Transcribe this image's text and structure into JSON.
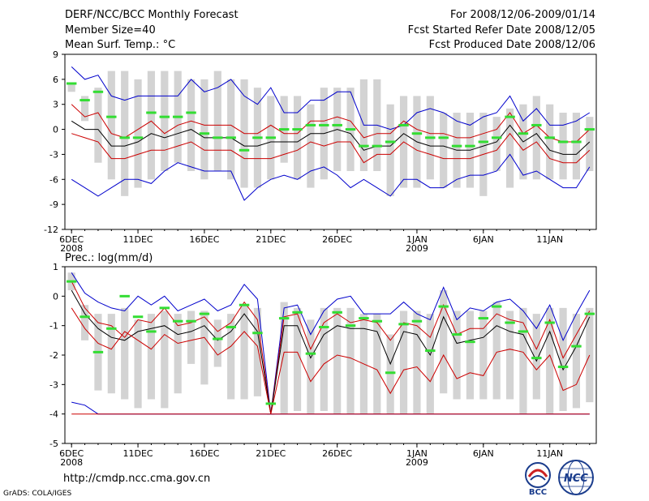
{
  "header": {
    "title": "DERF/NCC/BCC Monthly Forecast",
    "member_size": "Member Size=40",
    "variable": "Mean Surf. Temp.: °C",
    "period": "For 2008/12/06-2009/01/14",
    "started": "Fcst Started Refer Date 2008/12/05",
    "produced": "Fcst Produced Date 2008/12/06"
  },
  "footer": {
    "url": "http://cmdp.ncc.cma.gov.cn",
    "grads": "GrADS: COLA/IGES",
    "logo_bcc": "BCC",
    "logo_ncc": "NCC"
  },
  "colors": {
    "max_min": "#0000cc",
    "spread": "#cc0000",
    "mean": "#000000",
    "box": "#d3d3d3",
    "observed": "#33dd33"
  },
  "chart_data": [
    {
      "type": "line",
      "title": "Mean Surf. Temp.: °C",
      "ylim": [
        -12,
        9
      ],
      "yticks": [
        9,
        6,
        3,
        0,
        -3,
        -6,
        -9,
        -12
      ],
      "xlim": [
        0,
        40
      ],
      "xticks": [
        {
          "x": 0.5,
          "label": "6DEC",
          "sub": "2008"
        },
        {
          "x": 5.5,
          "label": "11DEC"
        },
        {
          "x": 10.5,
          "label": "16DEC"
        },
        {
          "x": 15.5,
          "label": "21DEC"
        },
        {
          "x": 20.5,
          "label": "26DEC"
        },
        {
          "x": 26.5,
          "label": "1JAN",
          "sub": "2009"
        },
        {
          "x": 31.5,
          "label": "6JAN"
        },
        {
          "x": 36.5,
          "label": "11JAN"
        }
      ],
      "box_top": [
        5.5,
        4,
        5,
        7,
        7,
        6,
        7,
        7,
        7,
        6,
        6,
        7,
        6,
        6,
        5,
        4,
        4,
        4,
        3,
        5,
        5,
        5,
        6,
        6,
        3,
        4,
        4,
        4,
        2,
        2,
        2,
        2,
        1.5,
        2.5,
        3,
        4,
        3,
        2,
        2,
        1.5
      ],
      "box_bottom": [
        4.5,
        1,
        -4,
        -6,
        -8,
        -7,
        -6,
        -5,
        -4,
        -5,
        -6,
        -5,
        -6,
        -7,
        -7,
        -6,
        -4,
        -6,
        -7,
        -6,
        -5,
        -5,
        -5,
        -5,
        -8,
        -7,
        -7,
        -6,
        -7,
        -7,
        -7,
        -8,
        -5,
        -7,
        -6,
        -6,
        -6,
        -6,
        -6,
        -5
      ],
      "observed": [
        5.5,
        3.5,
        4.5,
        1.5,
        -1,
        -1,
        2,
        1.5,
        1.5,
        2,
        -0.5,
        -1,
        -1,
        -2.5,
        -1,
        -1,
        0,
        0,
        0.5,
        0.5,
        0.5,
        0,
        -2,
        -2,
        -1.5,
        0.5,
        -0.5,
        -1,
        -1,
        -2,
        -2,
        -1.5,
        -1,
        1.5,
        -0.5,
        0.5,
        -1,
        -1.5,
        -1.5,
        0
      ],
      "series": [
        {
          "name": "max",
          "values": [
            7.5,
            6,
            6.5,
            4,
            3.5,
            4,
            4,
            4,
            4,
            6,
            4.5,
            5,
            6,
            4,
            3,
            5,
            2,
            2,
            3.5,
            3.5,
            4.5,
            4.5,
            0.5,
            0.5,
            0,
            0.5,
            2,
            2.5,
            2,
            1,
            0.5,
            1.5,
            2,
            4,
            1,
            2.5,
            0.5,
            0.5,
            1,
            2
          ]
        },
        {
          "name": "upper",
          "values": [
            3,
            1.5,
            2,
            -0.5,
            -1,
            0,
            1,
            -0.5,
            0.5,
            1,
            0.5,
            0.5,
            0.5,
            -0.5,
            -0.5,
            0.5,
            -0.5,
            -0.5,
            1,
            1,
            1.5,
            1,
            -1,
            -0.5,
            -0.5,
            1,
            0,
            -0.5,
            -0.5,
            -1,
            -1,
            -0.5,
            0,
            2,
            -0.5,
            0.5,
            -1,
            -1.5,
            -1.5,
            0
          ]
        },
        {
          "name": "mean",
          "values": [
            1,
            0,
            0,
            -2,
            -2,
            -1.5,
            -0.5,
            -1,
            -0.5,
            0,
            -1,
            -1,
            -1,
            -2,
            -2,
            -1.5,
            -1.5,
            -1.5,
            -0.5,
            -0.5,
            0,
            -0.5,
            -2.5,
            -2,
            -2,
            -0.5,
            -1.5,
            -2,
            -2,
            -2.5,
            -2.5,
            -2,
            -1.5,
            0.5,
            -1.5,
            -0.5,
            -2.5,
            -3,
            -3,
            -1.5
          ]
        },
        {
          "name": "lower",
          "values": [
            -0.5,
            -1,
            -1.5,
            -3.5,
            -3.5,
            -3,
            -2.5,
            -2.5,
            -2,
            -1.5,
            -2.5,
            -2.5,
            -2.5,
            -3.5,
            -3.5,
            -3.5,
            -3,
            -2.5,
            -1.5,
            -2,
            -1.5,
            -1.5,
            -4,
            -3,
            -3,
            -1.5,
            -2.5,
            -3,
            -3.5,
            -3.5,
            -3.5,
            -3,
            -2.5,
            -0.5,
            -2.5,
            -1.5,
            -3.5,
            -4,
            -4,
            -2.5
          ]
        },
        {
          "name": "min",
          "values": [
            -6,
            -7,
            -8,
            -7,
            -6,
            -6,
            -6.5,
            -5,
            -4,
            -4.5,
            -5,
            -5,
            -5,
            -8.5,
            -7,
            -6,
            -5.5,
            -6,
            -5,
            -4.5,
            -5.5,
            -7,
            -6,
            -7,
            -8,
            -6,
            -6,
            -7,
            -7,
            -6,
            -5.5,
            -5.5,
            -5,
            -3,
            -5.5,
            -5,
            -6,
            -7,
            -7,
            -4.5
          ]
        }
      ]
    },
    {
      "type": "line",
      "title": "Prec.: log(mm/d)",
      "ylim": [
        -5,
        1
      ],
      "yticks": [
        1,
        0,
        -1,
        -2,
        -3,
        -4,
        -5
      ],
      "xlim": [
        0,
        40
      ],
      "xticks": [
        {
          "x": 0.5,
          "label": "6DEC",
          "sub": "2008"
        },
        {
          "x": 5.5,
          "label": "11DEC"
        },
        {
          "x": 10.5,
          "label": "16DEC"
        },
        {
          "x": 15.5,
          "label": "21DEC"
        },
        {
          "x": 20.5,
          "label": "26DEC"
        },
        {
          "x": 26.5,
          "label": "1JAN",
          "sub": "2009"
        },
        {
          "x": 31.5,
          "label": "6JAN"
        },
        {
          "x": 36.5,
          "label": "11JAN"
        }
      ],
      "box_top": [
        0.8,
        -0.3,
        -0.6,
        -0.6,
        -0.4,
        -0.8,
        -0.6,
        -0.5,
        -0.6,
        -0.5,
        -0.5,
        -0.8,
        -0.6,
        -0.3,
        -0.4,
        -4,
        -0.2,
        -0.4,
        -0.8,
        -0.4,
        -0.4,
        -0.4,
        -0.6,
        -0.6,
        -1.3,
        -0.5,
        -0.5,
        -0.6,
        0.2,
        -0.5,
        -0.5,
        -0.5,
        -0.2,
        -0.5,
        -0.4,
        -0.6,
        -0.4,
        -0.4,
        -0.6,
        -0.4
      ],
      "box_bottom": [
        0.2,
        -1.5,
        -3.2,
        -3.3,
        -3.5,
        -3.8,
        -3.5,
        -3.8,
        -3.3,
        -2.3,
        -3,
        -2.4,
        -3.5,
        -3.5,
        -3.4,
        -4,
        -4,
        -3.9,
        -4,
        -3.9,
        -4,
        -4,
        -4,
        -4,
        -4,
        -4,
        -4,
        -4,
        -3.3,
        -3.5,
        -3.5,
        -3.5,
        -3.5,
        -3.5,
        -4,
        -3.5,
        -4,
        -3.9,
        -3.8,
        -3.6
      ],
      "observed": [
        0.5,
        -0.7,
        -1.9,
        -1.1,
        0,
        -0.7,
        -1.2,
        -0.4,
        -0.85,
        -0.85,
        -0.6,
        -1.45,
        -1.05,
        -0.3,
        -1.25,
        -3.65,
        -0.75,
        -0.55,
        -1.95,
        -1.05,
        -0.55,
        -1.0,
        -0.75,
        -0.85,
        -2.6,
        -0.95,
        -0.85,
        -1.85,
        -0.35,
        -1.3,
        -1.55,
        -0.75,
        -0.35,
        -0.9,
        -1.2,
        -2.1,
        -0.9,
        -2.4,
        -1.7,
        -0.6
      ],
      "series": [
        {
          "name": "max",
          "values": [
            0.8,
            0.1,
            -0.2,
            -0.4,
            -0.5,
            0,
            -0.3,
            0,
            -0.5,
            -0.3,
            -0.1,
            -0.5,
            -0.3,
            0.4,
            -0.1,
            -4,
            -0.4,
            -0.3,
            -1.3,
            -0.5,
            -0.1,
            0,
            -0.6,
            -0.6,
            -0.6,
            -0.2,
            -0.6,
            -0.8,
            0.3,
            -0.8,
            -0.4,
            -0.5,
            -0.2,
            -0.1,
            -0.5,
            -1.1,
            -0.3,
            -1.5,
            -0.6,
            0.2
          ]
        },
        {
          "name": "upper",
          "values": [
            0.5,
            -0.4,
            -0.9,
            -1.0,
            -1.4,
            -0.8,
            -0.9,
            -0.4,
            -1.0,
            -0.9,
            -0.7,
            -1.2,
            -0.9,
            -0.2,
            -0.8,
            -4,
            -0.7,
            -0.6,
            -1.8,
            -0.9,
            -0.6,
            -0.9,
            -0.8,
            -0.9,
            -1.5,
            -0.9,
            -1.0,
            -1.4,
            -0.3,
            -1.3,
            -1.1,
            -1.1,
            -0.6,
            -0.8,
            -0.9,
            -1.8,
            -0.8,
            -2.1,
            -1.3,
            -0.5
          ]
        },
        {
          "name": "mean",
          "values": [
            0.2,
            -0.6,
            -1.1,
            -1.4,
            -1.5,
            -1.2,
            -1.1,
            -1.0,
            -1.3,
            -1.2,
            -1.0,
            -1.5,
            -1.2,
            -0.6,
            -1.2,
            -4,
            -1.0,
            -1.0,
            -2.1,
            -1.3,
            -1.0,
            -1.1,
            -1.1,
            -1.2,
            -2.3,
            -1.2,
            -1.3,
            -2.0,
            -0.7,
            -1.6,
            -1.5,
            -1.4,
            -1.0,
            -1.2,
            -1.3,
            -2.2,
            -1.2,
            -2.5,
            -1.7,
            -0.7
          ]
        },
        {
          "name": "lower",
          "values": [
            -0.4,
            -1.1,
            -1.6,
            -1.8,
            -1.2,
            -1.5,
            -1.8,
            -1.3,
            -1.6,
            -1.5,
            -1.4,
            -2.0,
            -1.7,
            -1.2,
            -1.7,
            -4,
            -1.9,
            -1.9,
            -2.9,
            -2.3,
            -2.0,
            -2.1,
            -2.3,
            -2.5,
            -3.3,
            -2.5,
            -2.4,
            -2.9,
            -2.0,
            -2.8,
            -2.6,
            -2.7,
            -1.9,
            -1.8,
            -1.9,
            -2.5,
            -2.0,
            -3.2,
            -3.0,
            -2.0
          ]
        },
        {
          "name": "min",
          "values": [
            -3.6,
            -3.7,
            -4,
            -4,
            -4,
            -4,
            -4,
            -4,
            -4,
            -4,
            -4,
            -4,
            -4,
            -4,
            -4,
            -4,
            -4,
            -4,
            -4,
            -4,
            -4,
            -4,
            -4,
            -4,
            -4,
            -4,
            -4,
            -4,
            -4,
            -4,
            -4,
            -4,
            -4,
            -4,
            -4,
            -4,
            -4,
            -4,
            -4,
            -4
          ]
        },
        {
          "name": "floor",
          "values": [
            -4,
            -4,
            -4,
            -4,
            -4,
            -4,
            -4,
            -4,
            -4,
            -4,
            -4,
            -4,
            -4,
            -4,
            -4,
            -4,
            -4,
            -4,
            -4,
            -4,
            -4,
            -4,
            -4,
            -4,
            -4,
            -4,
            -4,
            -4,
            -4,
            -4,
            -4,
            -4,
            -4,
            -4,
            -4,
            -4,
            -4,
            -4,
            -4,
            -4
          ]
        }
      ]
    }
  ]
}
